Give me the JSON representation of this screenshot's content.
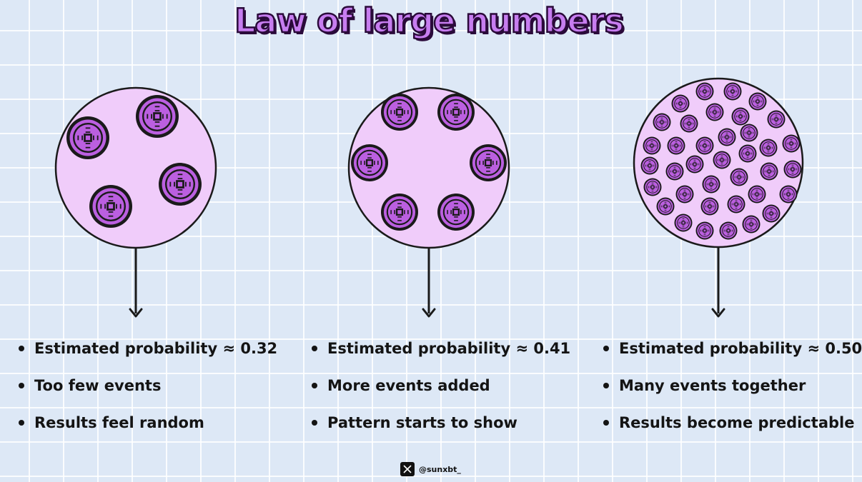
{
  "title": "Law of large numbers",
  "colors": {
    "circle_fill": "#f0ccfa",
    "coin_fill": "#bb5fe0",
    "outline": "#1a1a1a"
  },
  "panels": [
    {
      "coin_count": 4,
      "bullets": [
        "Estimated probability ≈ 0.32",
        "Too few events",
        "Results feel random"
      ]
    },
    {
      "coin_count": 6,
      "bullets": [
        "Estimated probability ≈ 0.41",
        "More events added",
        "Pattern starts to show"
      ]
    },
    {
      "coin_count": 40,
      "bullets": [
        "Estimated probability ≈ 0.50",
        "Many events together",
        "Results become predictable"
      ]
    }
  ],
  "credit": {
    "icon": "x-logo-icon",
    "handle": "@sunxbt_"
  }
}
